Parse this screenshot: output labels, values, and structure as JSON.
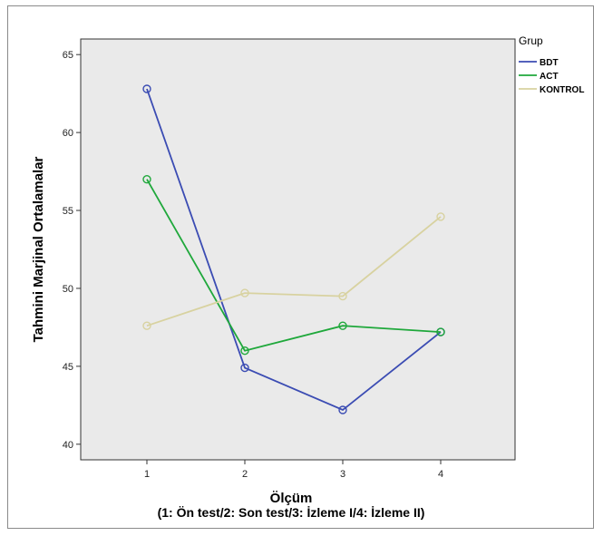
{
  "chart_data": {
    "type": "line",
    "ylabel": "Tahmini Marjinal Ortalamalar",
    "xlabel": "Ölçüm",
    "xlabel_note": "(1: Ön test/2: Son test/3: İzleme I/4: İzleme II)",
    "categories": [
      "1",
      "2",
      "3",
      "4"
    ],
    "yticks": [
      "40",
      "45",
      "50",
      "55",
      "60",
      "65"
    ],
    "ylim": [
      39,
      66
    ],
    "grid": false,
    "legend_title": "Grup",
    "legend_position": "right",
    "series": [
      {
        "name": "BDT",
        "color": "#3b4cb3",
        "values": [
          62.8,
          44.9,
          42.2,
          47.2
        ]
      },
      {
        "name": "ACT",
        "color": "#1fa83b",
        "values": [
          57.0,
          46.0,
          47.6,
          47.2
        ]
      },
      {
        "name": "KONTROL",
        "color": "#d8d2a0",
        "values": [
          47.6,
          49.7,
          49.5,
          54.6
        ]
      }
    ]
  }
}
